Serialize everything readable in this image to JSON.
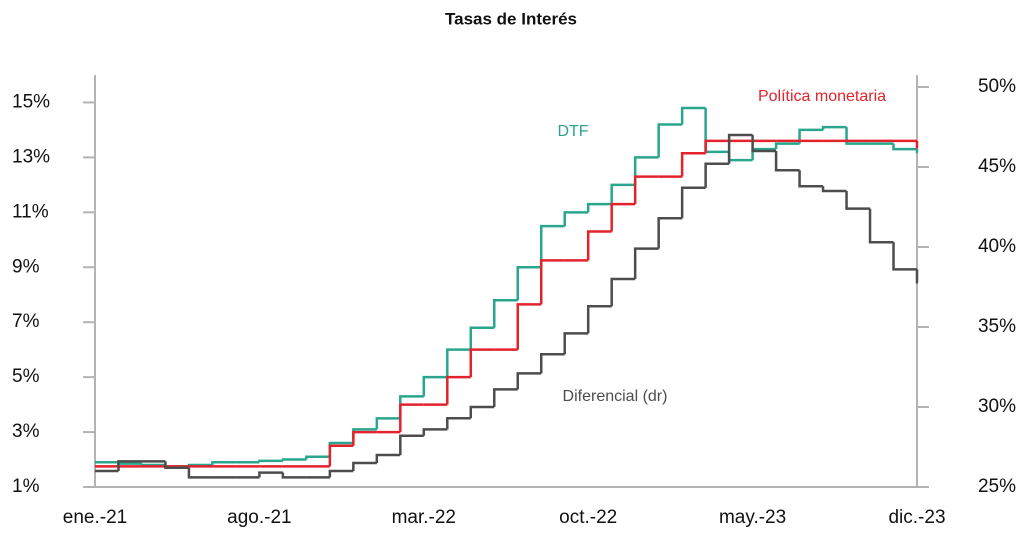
{
  "chart_data": {
    "type": "step",
    "title": "Tasas de Interés",
    "categories": [
      "ene.-21",
      null,
      null,
      null,
      null,
      null,
      null,
      "ago.-21",
      null,
      null,
      null,
      null,
      null,
      null,
      "mar.-22",
      null,
      null,
      null,
      null,
      null,
      null,
      "oct.-22",
      null,
      null,
      null,
      null,
      null,
      null,
      "may.-23",
      null,
      null,
      null,
      null,
      null,
      null,
      "dic.-23"
    ],
    "series": [
      {
        "name": "DTF",
        "color": "#2aa58e",
        "axis": "y",
        "values": [
          1.9,
          1.85,
          1.8,
          1.75,
          1.8,
          1.9,
          1.9,
          1.95,
          2.0,
          2.1,
          2.6,
          3.1,
          3.5,
          4.3,
          5.0,
          6.0,
          6.8,
          7.8,
          9.0,
          10.5,
          11.0,
          11.3,
          12.0,
          13.0,
          14.2,
          14.8,
          13.2,
          12.9,
          13.3,
          13.5,
          14.0,
          14.1,
          13.5,
          13.5,
          13.3,
          13.2
        ]
      },
      {
        "name": "Política monetaria",
        "color": "#e3232c",
        "axis": "y",
        "values": [
          1.75,
          1.75,
          1.75,
          1.75,
          1.75,
          1.75,
          1.75,
          1.75,
          1.75,
          1.75,
          2.5,
          3.0,
          3.0,
          4.0,
          4.0,
          5.0,
          6.0,
          6.0,
          7.65,
          9.25,
          9.25,
          10.3,
          11.3,
          12.3,
          12.3,
          13.15,
          13.6,
          13.6,
          13.6,
          13.6,
          13.6,
          13.6,
          13.6,
          13.6,
          13.6,
          13.36
        ]
      },
      {
        "name": "Diferencial (dr)",
        "color": "#4d4d4d",
        "axis": "y2",
        "values": [
          26.0,
          26.6,
          26.6,
          26.2,
          25.6,
          25.6,
          25.6,
          25.9,
          25.6,
          25.6,
          26.0,
          26.5,
          27.0,
          28.2,
          28.6,
          29.3,
          30.0,
          31.1,
          32.1,
          33.3,
          34.6,
          36.3,
          38.0,
          39.9,
          41.8,
          43.7,
          45.2,
          47.0,
          46.0,
          44.8,
          43.8,
          43.5,
          42.4,
          40.3,
          38.6,
          37.8
        ]
      }
    ],
    "ylim": [
      1,
      16
    ],
    "yticks": [
      {
        "value": 1,
        "label": "1%"
      },
      {
        "value": 3,
        "label": "3%"
      },
      {
        "value": 5,
        "label": "5%"
      },
      {
        "value": 7,
        "label": "7%"
      },
      {
        "value": 9,
        "label": "9%"
      },
      {
        "value": 11,
        "label": "11%"
      },
      {
        "value": 13,
        "label": "13%"
      },
      {
        "value": 15,
        "label": "15%"
      }
    ],
    "y2lim": [
      25,
      50.75
    ],
    "y2ticks": [
      {
        "value": 25,
        "label": "25%"
      },
      {
        "value": 30,
        "label": "30%"
      },
      {
        "value": 35,
        "label": "35%"
      },
      {
        "value": 40,
        "label": "40%"
      },
      {
        "value": 45,
        "label": "45%"
      },
      {
        "value": 50,
        "label": "50%"
      }
    ],
    "grid": false
  }
}
